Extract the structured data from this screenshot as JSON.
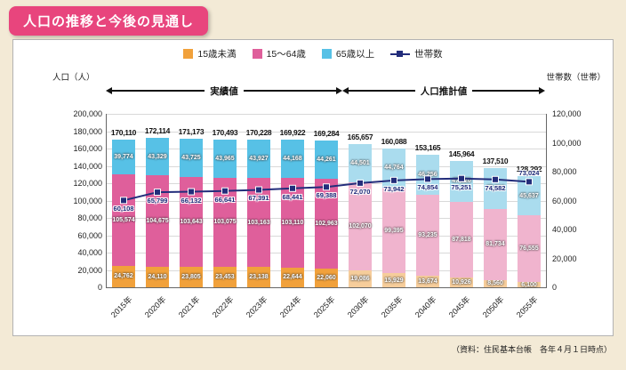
{
  "title": "人口の推移と今後の見通し",
  "source": "（資料：住民基本台帳　各年４月１日時点）",
  "axes": {
    "left_label": "人口（人）",
    "right_label": "世帯数（世帯）"
  },
  "annotations": {
    "actual": "実績値",
    "estimate": "人口推計値"
  },
  "legend": [
    {
      "label": "15歳未満",
      "color": "#f1a13b"
    },
    {
      "label": "15～64歳",
      "color": "#df5f9b"
    },
    {
      "label": "65歳以上",
      "color": "#57c1e6"
    },
    {
      "label": "世帯数",
      "color": "#232d7b",
      "type": "line"
    }
  ],
  "colors": {
    "estimate_under15": "#f6cd9b",
    "estimate_working": "#f0b4ce",
    "estimate_over65": "#aadcee",
    "household_line": "#232d7b",
    "title_badge": "#e8457d"
  },
  "chart_data": {
    "type": "bar",
    "subtype": "stacked-bars-with-line",
    "categories": [
      "2015年",
      "2020年",
      "2021年",
      "2022年",
      "2023年",
      "2024年",
      "2025年",
      "2030年",
      "2035年",
      "2040年",
      "2045年",
      "2050年",
      "2055年"
    ],
    "actual_count": 7,
    "series": [
      {
        "name": "15歳未満",
        "values": [
          24762,
          24110,
          23805,
          23453,
          23138,
          22644,
          22060,
          19086,
          15929,
          13674,
          10926,
          8560,
          6100
        ]
      },
      {
        "name": "15～64歳",
        "values": [
          105574,
          104675,
          103643,
          103075,
          103163,
          103110,
          102963,
          102070,
          99395,
          93235,
          87818,
          81734,
          76555
        ]
      },
      {
        "name": "65歳以上",
        "values": [
          39774,
          43329,
          43725,
          43965,
          43927,
          44168,
          44261,
          44501,
          44764,
          46256,
          47220,
          47216,
          45637
        ]
      }
    ],
    "line_series": {
      "name": "世帯数",
      "values": [
        60108,
        65799,
        66132,
        66641,
        67391,
        68441,
        69388,
        72070,
        73942,
        74854,
        75251,
        74582,
        73024
      ]
    },
    "totals": [
      170110,
      172114,
      171173,
      170493,
      170228,
      169922,
      169284,
      165657,
      160088,
      153165,
      145964,
      137510,
      128292
    ],
    "left_axis": {
      "min": 0,
      "max": 200000,
      "step": 20000
    },
    "right_axis": {
      "min": 0,
      "max": 120000,
      "step": 20000
    },
    "grid": true,
    "legend_position": "top"
  }
}
